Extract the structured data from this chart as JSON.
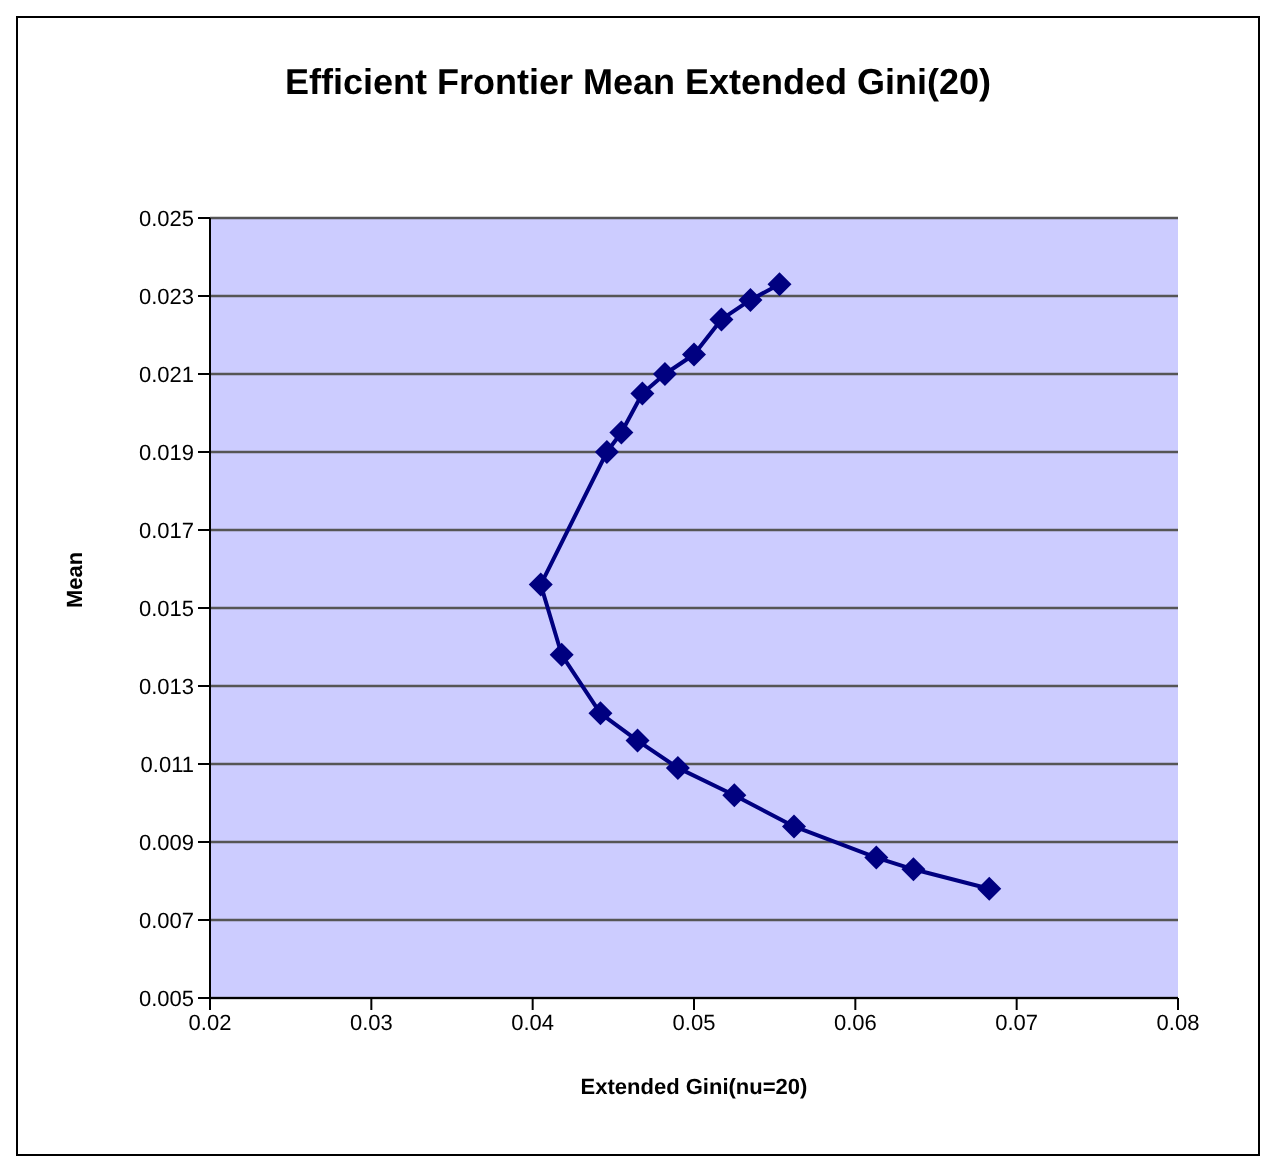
{
  "chart_data": {
    "type": "line",
    "title": "Efficient Frontier Mean Extended Gini(20)",
    "xlabel": "Extended Gini(nu=20)",
    "ylabel": "Mean",
    "x": [
      0.0553,
      0.0535,
      0.0517,
      0.05,
      0.0482,
      0.0468,
      0.0455,
      0.0446,
      0.0405,
      0.0418,
      0.0442,
      0.0465,
      0.049,
      0.0525,
      0.0562,
      0.0613,
      0.0636,
      0.0683
    ],
    "series": [
      {
        "color": "#000080",
        "values": [
          0.0233,
          0.0229,
          0.0224,
          0.0215,
          0.021,
          0.0205,
          0.0195,
          0.019,
          0.0156,
          0.0138,
          0.0123,
          0.0116,
          0.0109,
          0.0102,
          0.0094,
          0.0086,
          0.0083,
          0.0078
        ]
      }
    ],
    "xlim": [
      0.02,
      0.08
    ],
    "xticks": [
      0.02,
      0.03,
      0.04,
      0.05,
      0.06,
      0.07,
      0.08
    ],
    "ylim": [
      0.005,
      0.025
    ],
    "yticks": [
      0.005,
      0.007,
      0.009,
      0.011,
      0.013,
      0.015,
      0.017,
      0.019,
      0.021,
      0.023,
      0.025
    ],
    "grid": "y",
    "marker": "diamond",
    "legend": false
  }
}
